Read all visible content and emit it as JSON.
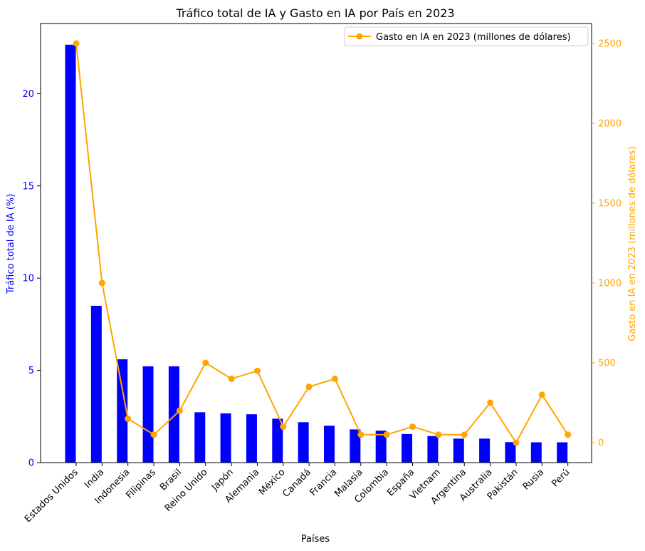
{
  "chart_data": {
    "type": "bar",
    "title": "Tráfico total de IA y Gasto en IA por País en 2023",
    "xlabel": "Países",
    "ylabel_left": "Tráfico total de IA (%)",
    "ylabel_right": "Gasto en IA en 2023 (millones de dólares)",
    "categories": [
      "Estados Unidos",
      "India",
      "Indonesia",
      "Filipinas",
      "Brasil",
      "Reino Unido",
      "Japón",
      "Alemania",
      "México",
      "Canadá",
      "Francia",
      "Malasia",
      "Colombia",
      "España",
      "Vietnam",
      "Argentina",
      "Australia",
      "Pakistán",
      "Rusia",
      "Perú"
    ],
    "series": [
      {
        "type": "bar",
        "axis": "left",
        "color": "#0000ff",
        "values": [
          22.65,
          8.5,
          5.6,
          5.22,
          5.22,
          2.73,
          2.67,
          2.62,
          2.38,
          2.19,
          2.0,
          1.8,
          1.73,
          1.55,
          1.44,
          1.3,
          1.3,
          1.11,
          1.1,
          1.1
        ]
      },
      {
        "type": "line",
        "axis": "right",
        "name": "Gasto en IA en 2023 (millones de dólares)",
        "color": "#ffa500",
        "values": [
          2500,
          1000,
          150,
          50,
          200,
          500,
          400,
          450,
          100,
          350,
          400,
          50,
          50,
          100,
          50,
          50,
          250,
          0,
          300,
          50
        ]
      }
    ],
    "ylim_left": [
      0,
      23.8
    ],
    "ylim_right": [
      -125,
      2625
    ],
    "yticks_left": [
      "0",
      "5",
      "10",
      "15",
      "20"
    ],
    "yticks_right": [
      "0",
      "500",
      "1000",
      "1500",
      "2000",
      "2500"
    ],
    "legend_position": "top-right",
    "grid": false,
    "colors": {
      "left_axis": "#0000ff",
      "right_axis": "#ffa500",
      "axes": "#000000"
    }
  }
}
